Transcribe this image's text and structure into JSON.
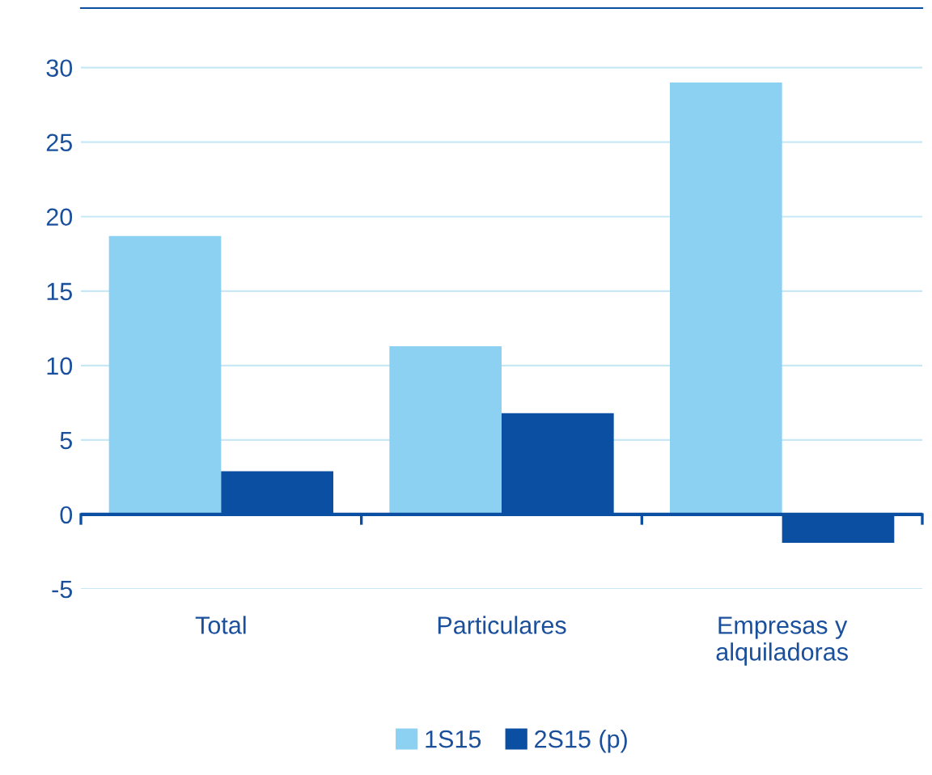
{
  "chart_data": {
    "type": "bar",
    "categories": [
      "Total",
      "Particulares",
      "Empresas y\nalquiladoras"
    ],
    "series": [
      {
        "name": "1S15",
        "color": "#8dd1f2",
        "values": [
          18.7,
          11.3,
          29.0
        ]
      },
      {
        "name": "2S15 (p)",
        "color": "#0b4fa3",
        "values": [
          2.9,
          6.8,
          -1.9
        ]
      }
    ],
    "ylim": [
      -5,
      34
    ],
    "yticks": [
      {
        "value": -5,
        "label": "-5"
      },
      0,
      5,
      10,
      15,
      20,
      25,
      30
    ],
    "grid": "y",
    "legend": "bottom",
    "ref_lines": [
      {
        "axis": "y",
        "value": 0,
        "color": "#0b4fa3"
      }
    ]
  }
}
